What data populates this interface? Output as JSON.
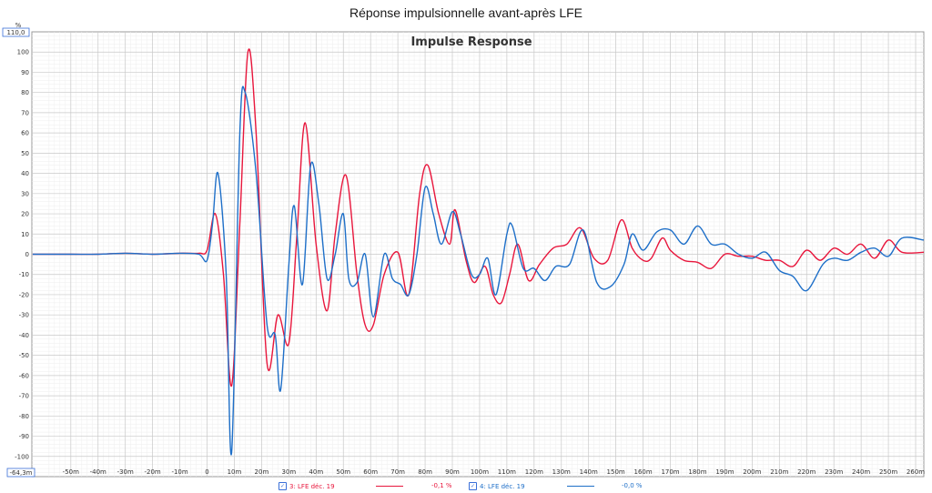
{
  "window": {
    "title": "Réponse impulsionnelle avant-après LFE"
  },
  "chart_data": {
    "type": "line",
    "title": "Impulse Response",
    "y_unit": "%",
    "y_top_label": "110,0",
    "y_bottom_label": "-64,3m",
    "xlim": [
      -0.0643,
      0.263
    ],
    "ylim": [
      -110,
      110
    ],
    "x_ticks": [
      -0.05,
      -0.04,
      -0.03,
      -0.02,
      -0.01,
      0,
      0.01,
      0.02,
      0.03,
      0.04,
      0.05,
      0.06,
      0.07,
      0.08,
      0.09,
      0.1,
      0.11,
      0.12,
      0.13,
      0.14,
      0.15,
      0.16,
      0.17,
      0.18,
      0.19,
      0.2,
      0.21,
      0.22,
      0.23,
      0.24,
      0.25,
      0.26
    ],
    "x_tick_labels": [
      "-50m",
      "-40m",
      "-30m",
      "-20m",
      "-10m",
      "0",
      "10m",
      "20m",
      "30m",
      "40m",
      "50m",
      "60m",
      "70m",
      "80m",
      "90m",
      "100m",
      "110m",
      "120m",
      "130m",
      "140m",
      "150m",
      "160m",
      "170m",
      "180m",
      "190m",
      "200m",
      "210m",
      "220m",
      "230m",
      "240m",
      "250m",
      "260m"
    ],
    "y_ticks": [
      100,
      90,
      80,
      70,
      60,
      50,
      40,
      30,
      20,
      10,
      0,
      -10,
      -20,
      -30,
      -40,
      -50,
      -60,
      -70,
      -80,
      -90,
      -100
    ],
    "grid": true,
    "series": [
      {
        "name": "3: LFE déc. 19",
        "color": "#e8163c",
        "legend_value": "-0,1 %",
        "x": [
          -0.064,
          -0.05,
          -0.04,
          -0.03,
          -0.02,
          -0.01,
          -0.003,
          0,
          0.003,
          0.006,
          0.009,
          0.012,
          0.015,
          0.018,
          0.022,
          0.026,
          0.03,
          0.033,
          0.036,
          0.04,
          0.044,
          0.047,
          0.051,
          0.055,
          0.058,
          0.061,
          0.065,
          0.07,
          0.074,
          0.078,
          0.081,
          0.085,
          0.089,
          0.091,
          0.095,
          0.098,
          0.102,
          0.105,
          0.108,
          0.111,
          0.114,
          0.118,
          0.122,
          0.127,
          0.132,
          0.137,
          0.142,
          0.147,
          0.152,
          0.156,
          0.16,
          0.163,
          0.167,
          0.17,
          0.175,
          0.18,
          0.185,
          0.19,
          0.195,
          0.2,
          0.205,
          0.21,
          0.215,
          0.22,
          0.225,
          0.23,
          0.235,
          0.24,
          0.245,
          0.25,
          0.255,
          0.263
        ],
        "y": [
          0,
          0,
          0,
          0.5,
          0,
          0.5,
          0.5,
          2,
          20,
          -10,
          -65,
          15,
          100,
          60,
          -54,
          -30,
          -44,
          10,
          65,
          5,
          -28,
          10,
          39,
          -10,
          -35,
          -35,
          -10,
          1,
          -20,
          30,
          44,
          20,
          5,
          22,
          -3,
          -14,
          -6,
          -20,
          -24,
          -10,
          5,
          -13,
          -5,
          3,
          5,
          13,
          -2,
          -3,
          17,
          3,
          -3,
          -2,
          8,
          2,
          -3,
          -4,
          -7,
          0,
          -1,
          -1,
          -3,
          -3,
          -6,
          2,
          -3,
          3,
          0,
          5,
          -2,
          7,
          1,
          1
        ]
      },
      {
        "name": "4: LFE déc. 19",
        "color": "#1e6fc8",
        "legend_value": "-0,0 %",
        "x": [
          -0.064,
          -0.05,
          -0.04,
          -0.03,
          -0.02,
          -0.01,
          -0.003,
          0,
          0.002,
          0.004,
          0.007,
          0.009,
          0.012,
          0.014,
          0.018,
          0.022,
          0.025,
          0.027,
          0.03,
          0.032,
          0.035,
          0.038,
          0.041,
          0.044,
          0.047,
          0.05,
          0.052,
          0.055,
          0.058,
          0.061,
          0.065,
          0.068,
          0.071,
          0.074,
          0.077,
          0.08,
          0.083,
          0.086,
          0.09,
          0.093,
          0.097,
          0.1,
          0.103,
          0.106,
          0.11,
          0.112,
          0.116,
          0.12,
          0.124,
          0.128,
          0.133,
          0.138,
          0.143,
          0.148,
          0.153,
          0.156,
          0.16,
          0.165,
          0.17,
          0.175,
          0.18,
          0.185,
          0.19,
          0.195,
          0.2,
          0.205,
          0.21,
          0.215,
          0.22,
          0.226,
          0.23,
          0.235,
          0.24,
          0.245,
          0.25,
          0.255,
          0.263
        ],
        "y": [
          0,
          0,
          0,
          0.5,
          0,
          0.5,
          0,
          -3,
          15,
          40,
          -10,
          -98,
          60,
          80,
          40,
          -35,
          -40,
          -67,
          -5,
          24,
          -15,
          44,
          25,
          -12,
          0,
          20,
          -12,
          -14,
          0,
          -31,
          0,
          -12,
          -15,
          -20,
          0,
          33,
          20,
          5,
          21,
          10,
          -10,
          -10,
          -2,
          -20,
          10,
          14,
          -7,
          -7,
          -13,
          -6,
          -5,
          12,
          -14,
          -16,
          -5,
          10,
          2,
          11,
          12,
          5,
          14,
          5,
          5,
          0,
          -2,
          1,
          -8,
          -11,
          -18,
          -5,
          -2,
          -3,
          1,
          3,
          -1,
          8,
          7
        ]
      }
    ]
  }
}
